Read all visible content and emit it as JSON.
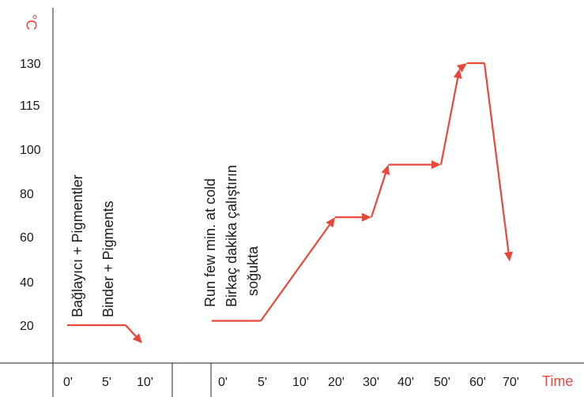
{
  "chart_data": {
    "type": "line",
    "ylabel": "°C",
    "xlabel": "Time",
    "y_ticks": [
      "20",
      "40",
      "60",
      "80",
      "100",
      "115",
      "130"
    ],
    "x_ticks_phase1": [
      "0'",
      "5'",
      "10'"
    ],
    "x_ticks_phase2": [
      "0'",
      "5'",
      "10'",
      "20'",
      "30'",
      "40'",
      "50'",
      "60'",
      "70'"
    ],
    "annotations": {
      "phase1": [
        "Bağlayıcı + Pigmentler",
        "Binder + Pigments"
      ],
      "phase2": [
        "Run few min. at cold",
        "Birkaç dakika çalıştırın",
        "soğukta"
      ]
    },
    "colors": {
      "line": "#e8473a",
      "axis": "#222222",
      "text": "#1a1a1a"
    },
    "series": [
      {
        "phase": 1,
        "points": [
          {
            "x": 0,
            "y": 20
          },
          {
            "x": 7.5,
            "y": 20
          },
          {
            "x": 10,
            "y": 12
          }
        ]
      },
      {
        "phase": 2,
        "points": [
          {
            "x": 0,
            "y": 22
          },
          {
            "x": 5,
            "y": 22
          },
          {
            "x": 20,
            "y": 69
          },
          {
            "x": 30,
            "y": 69
          },
          {
            "x": 35,
            "y": 93
          },
          {
            "x": 50,
            "y": 93
          },
          {
            "x": 55,
            "y": 128
          },
          {
            "x": 57,
            "y": 130
          },
          {
            "x": 62,
            "y": 130
          },
          {
            "x": 70,
            "y": 49
          }
        ]
      }
    ]
  }
}
